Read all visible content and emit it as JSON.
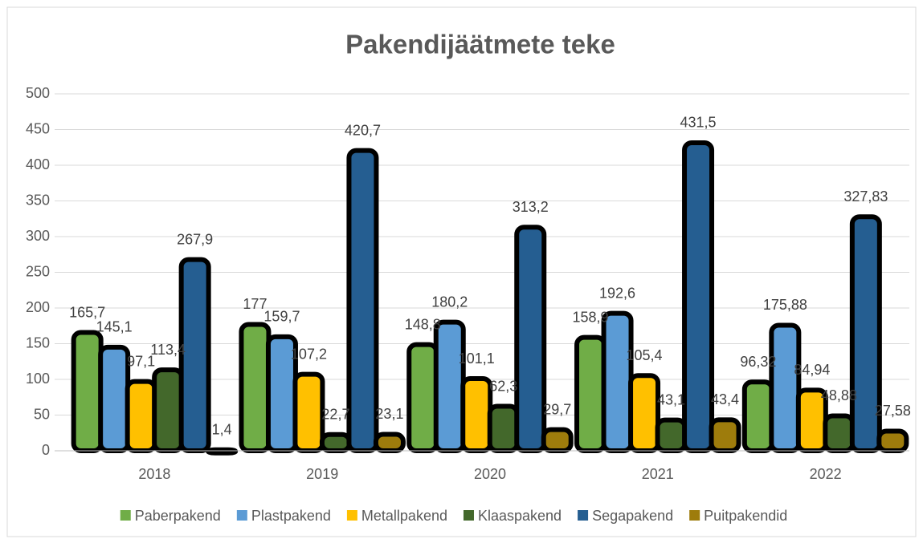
{
  "chart_data": {
    "type": "bar",
    "title": "Pakendijäätmete teke",
    "categories": [
      "2018",
      "2019",
      "2020",
      "2021",
      "2022"
    ],
    "series": [
      {
        "name": "Paberpakend",
        "color": "#70ad47",
        "values": [
          165.7,
          177,
          148.8,
          158.9,
          96.32
        ],
        "value_labels": [
          "165,7",
          "177",
          "148,8",
          "158,9",
          "96,32"
        ]
      },
      {
        "name": "Plastpakend",
        "color": "#5b9bd5",
        "values": [
          145.1,
          159.7,
          180.2,
          192.6,
          175.88
        ],
        "value_labels": [
          "145,1",
          "159,7",
          "180,2",
          "192,6",
          "175,88"
        ]
      },
      {
        "name": "Metallpakend",
        "color": "#ffc000",
        "values": [
          97.1,
          107.2,
          101.1,
          105.4,
          84.94
        ],
        "value_labels": [
          "97,1",
          "107,2",
          "101,1",
          "105,4",
          "84,94"
        ]
      },
      {
        "name": "Klaaspakend",
        "color": "#43682b",
        "values": [
          113.4,
          22.7,
          62.3,
          43.1,
          48.88
        ],
        "value_labels": [
          "113,4",
          "22,7",
          "62,3",
          "43,1",
          "48,88"
        ]
      },
      {
        "name": "Segapakend",
        "color": "#255e91",
        "values": [
          267.9,
          420.7,
          313.2,
          431.5,
          327.83
        ],
        "value_labels": [
          "267,9",
          "420,7",
          "313,2",
          "431,5",
          "327,83"
        ]
      },
      {
        "name": "Puitpakendid",
        "color": "#9e7c0c",
        "values": [
          1.4,
          23.1,
          29.7,
          43.4,
          27.58
        ],
        "value_labels": [
          "1,4",
          "23,1",
          "29,7",
          "43,4",
          "27,58"
        ]
      }
    ],
    "ylim": [
      0,
      500
    ],
    "yticks": [
      0,
      50,
      100,
      150,
      200,
      250,
      300,
      350,
      400,
      450,
      500
    ],
    "grid": true,
    "legend": "bottom"
  }
}
